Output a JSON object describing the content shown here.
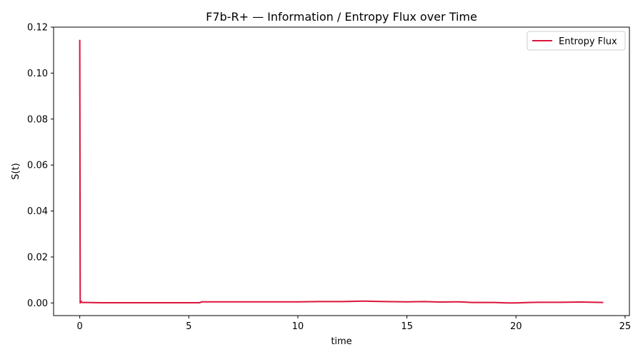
{
  "chart_data": {
    "type": "line",
    "title": "F7b-R+ — Information / Entropy Flux over Time",
    "xlabel": "time",
    "ylabel": "S(t)",
    "xlim": [
      -1.2,
      25.2
    ],
    "ylim": [
      -0.0055,
      0.12
    ],
    "x_ticks": [
      0,
      5,
      10,
      15,
      20,
      25
    ],
    "x_tick_labels": [
      "0",
      "5",
      "10",
      "15",
      "20",
      "25"
    ],
    "y_ticks": [
      0.0,
      0.02,
      0.04,
      0.06,
      0.08,
      0.1,
      0.12
    ],
    "y_tick_labels": [
      "0.00",
      "0.02",
      "0.04",
      "0.06",
      "0.08",
      "0.10",
      "0.12"
    ],
    "grid": false,
    "legend": {
      "position": "top-right",
      "entries": [
        "Entropy Flux"
      ]
    },
    "series": [
      {
        "name": "Entropy Flux",
        "color": "#dc143c",
        "x": [
          0.0,
          0.02,
          0.05,
          0.1,
          0.3,
          1.0,
          2.0,
          3.0,
          4.0,
          5.0,
          5.5,
          5.6,
          6.0,
          8.0,
          10.0,
          11.0,
          12.0,
          13.0,
          14.0,
          15.0,
          15.8,
          16.5,
          17.4,
          18.0,
          19.0,
          19.6,
          20.0,
          20.6,
          21.0,
          22.0,
          23.0,
          24.0
        ],
        "y": [
          0.1145,
          0.0,
          0.0008,
          0.0002,
          0.0002,
          0.0001,
          0.0001,
          0.0001,
          0.0001,
          0.0001,
          0.0001,
          0.0005,
          0.0005,
          0.0005,
          0.0005,
          0.0006,
          0.0006,
          0.0008,
          0.0006,
          0.0005,
          0.0006,
          0.0004,
          0.0005,
          0.0002,
          0.0002,
          0.0,
          0.0,
          0.0002,
          0.0003,
          0.0003,
          0.0004,
          0.0002
        ]
      }
    ]
  }
}
